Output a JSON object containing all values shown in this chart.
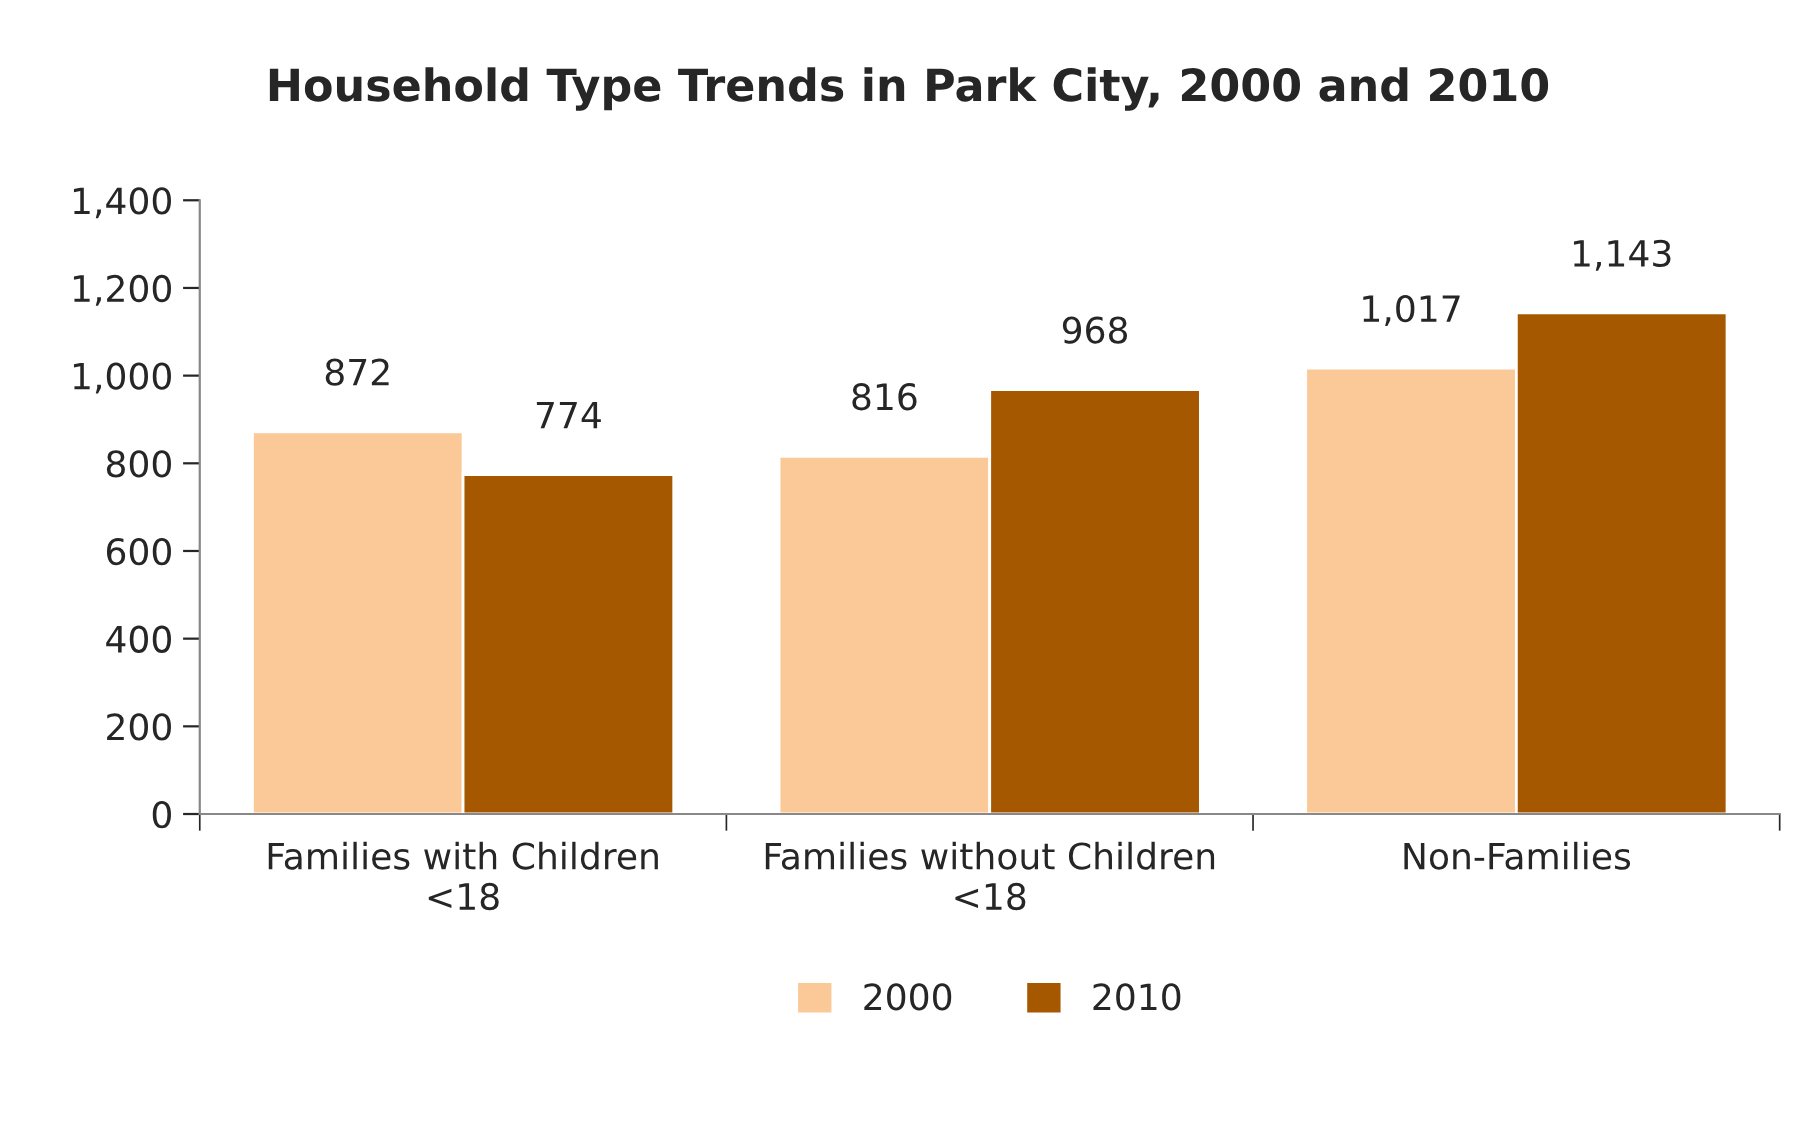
{
  "chart_data": {
    "type": "bar",
    "title": "Household Type Trends in Park City, 2000 and 2010",
    "categories": [
      "Families with Children\n<18",
      "Families without Children\n<18",
      "Non-Families"
    ],
    "series": [
      {
        "name": "2000",
        "color": "#fbc997",
        "values": [
          872,
          816,
          1017
        ],
        "value_labels": [
          "872",
          "816",
          "1,017"
        ]
      },
      {
        "name": "2010",
        "color": "#a65800",
        "values": [
          774,
          968,
          1143
        ],
        "value_labels": [
          "774",
          "968",
          "1,143"
        ]
      }
    ],
    "ylim": [
      0,
      1400
    ],
    "yticks": [
      0,
      200,
      400,
      600,
      800,
      {
        "value": 1000,
        "label": "1,000"
      },
      {
        "value": 1200,
        "label": "1,200"
      },
      {
        "value": 1400,
        "label": "1,400"
      }
    ],
    "legend": "bottom",
    "grid": false
  }
}
